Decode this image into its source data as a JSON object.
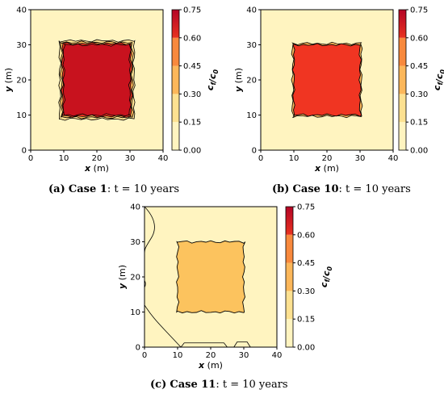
{
  "chart_data": [
    {
      "type": "heatmap",
      "xlabel_var": "x",
      "xlabel_unit": " (m)",
      "ylabel_var": "y",
      "ylabel_unit": " (m)",
      "xlim": [
        0,
        40
      ],
      "ylim": [
        0,
        40
      ],
      "xticks": [
        "0",
        "10",
        "20",
        "30",
        "40"
      ],
      "yticks": [
        "0",
        "10",
        "20",
        "30",
        "40"
      ],
      "colorbar": {
        "label": "c_f/c_0",
        "ticks": [
          "0.00",
          "0.15",
          "0.30",
          "0.45",
          "0.60",
          "0.75"
        ],
        "levels": [
          0,
          0.15,
          0.3,
          0.45,
          0.6,
          0.75
        ]
      },
      "background_value": 0.1,
      "block": {
        "x": [
          10,
          30
        ],
        "y": [
          10,
          30
        ],
        "value": 0.65
      },
      "caption": {
        "label": "(a)",
        "case": "Case 1",
        "time": ": t = 10 years"
      }
    },
    {
      "type": "heatmap",
      "xlabel_var": "x",
      "xlabel_unit": " (m)",
      "ylabel_var": "y",
      "ylabel_unit": " (m)",
      "xlim": [
        0,
        40
      ],
      "ylim": [
        0,
        40
      ],
      "xticks": [
        "0",
        "10",
        "20",
        "30",
        "40"
      ],
      "yticks": [
        "0",
        "10",
        "20",
        "30",
        "40"
      ],
      "colorbar": {
        "label": "c_f/c_0",
        "ticks": [
          "0.00",
          "0.15",
          "0.30",
          "0.45",
          "0.60",
          "0.75"
        ],
        "levels": [
          0,
          0.15,
          0.3,
          0.45,
          0.6,
          0.75
        ]
      },
      "background_value": 0.1,
      "block": {
        "x": [
          10,
          30
        ],
        "y": [
          10,
          30
        ],
        "value": 0.55
      },
      "caption": {
        "label": "(b)",
        "case": "Case 10",
        "time": ": t = 10 years"
      }
    },
    {
      "type": "heatmap",
      "xlabel_var": "x",
      "xlabel_unit": " (m)",
      "ylabel_var": "y",
      "ylabel_unit": " (m)",
      "xlim": [
        0,
        40
      ],
      "ylim": [
        0,
        40
      ],
      "xticks": [
        "0",
        "10",
        "20",
        "30",
        "40"
      ],
      "yticks": [
        "0",
        "10",
        "20",
        "30",
        "40"
      ],
      "colorbar": {
        "label": "c_f/c_0",
        "ticks": [
          "0.00",
          "0.15",
          "0.30",
          "0.45",
          "0.60",
          "0.75"
        ],
        "levels": [
          0,
          0.15,
          0.3,
          0.45,
          0.6,
          0.75
        ]
      },
      "background_value": 0.1,
      "block": {
        "x": [
          10,
          30
        ],
        "y": [
          10,
          30
        ],
        "value": 0.25
      },
      "caption": {
        "label": "(c)",
        "case": "Case 11",
        "time": ": t = 10 years"
      }
    }
  ],
  "colors": {
    "level_0": "#fff4c0",
    "level_1": "#fde191",
    "level_2": "#fcb75a",
    "level_3": "#f8893d",
    "level_4": "#e8321f",
    "level_5": "#b40426",
    "case1_block": "#c8121e",
    "case10_block": "#f03522",
    "case11_block": "#fcc35e"
  }
}
